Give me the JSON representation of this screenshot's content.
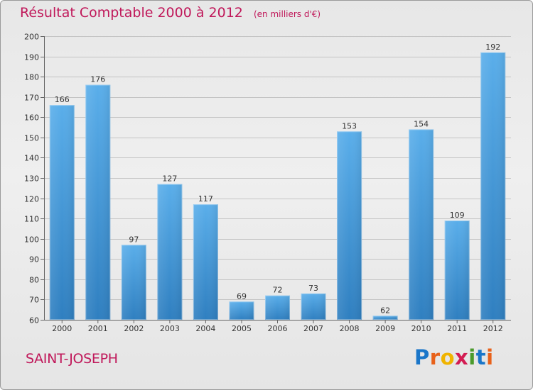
{
  "header": {
    "title": "Résultat Comptable 2000 à 2012",
    "subtitle": "(en milliers d'€)"
  },
  "footer": {
    "commune": "SAINT-JOSEPH",
    "logo": "Proxiti",
    "logo_letters": [
      "P",
      "r",
      "o",
      "x",
      "i",
      "t",
      "i"
    ],
    "logo_colors": [
      "#1a76c9",
      "#e8611a",
      "#f0b400",
      "#d31c52",
      "#4a9a2b",
      "#1a76c9",
      "#e8611a"
    ]
  },
  "chart_data": {
    "type": "bar",
    "title": "Résultat Comptable 2000 à 2012",
    "subtitle": "(en milliers d'€)",
    "xlabel": "",
    "ylabel": "",
    "categories": [
      "2000",
      "2001",
      "2002",
      "2003",
      "2004",
      "2005",
      "2006",
      "2007",
      "2008",
      "2009",
      "2010",
      "2011",
      "2012"
    ],
    "values": [
      166,
      176,
      97,
      127,
      117,
      69,
      72,
      73,
      153,
      62,
      154,
      109,
      192
    ],
    "ylim": [
      60,
      200
    ],
    "yticks": [
      60,
      70,
      80,
      90,
      100,
      110,
      120,
      130,
      140,
      150,
      160,
      170,
      180,
      190,
      200
    ],
    "grid": true,
    "bar_color_top": "#5aaeea",
    "bar_color_bottom": "#2f7fc0",
    "grid_color": "#c4c4c4"
  }
}
